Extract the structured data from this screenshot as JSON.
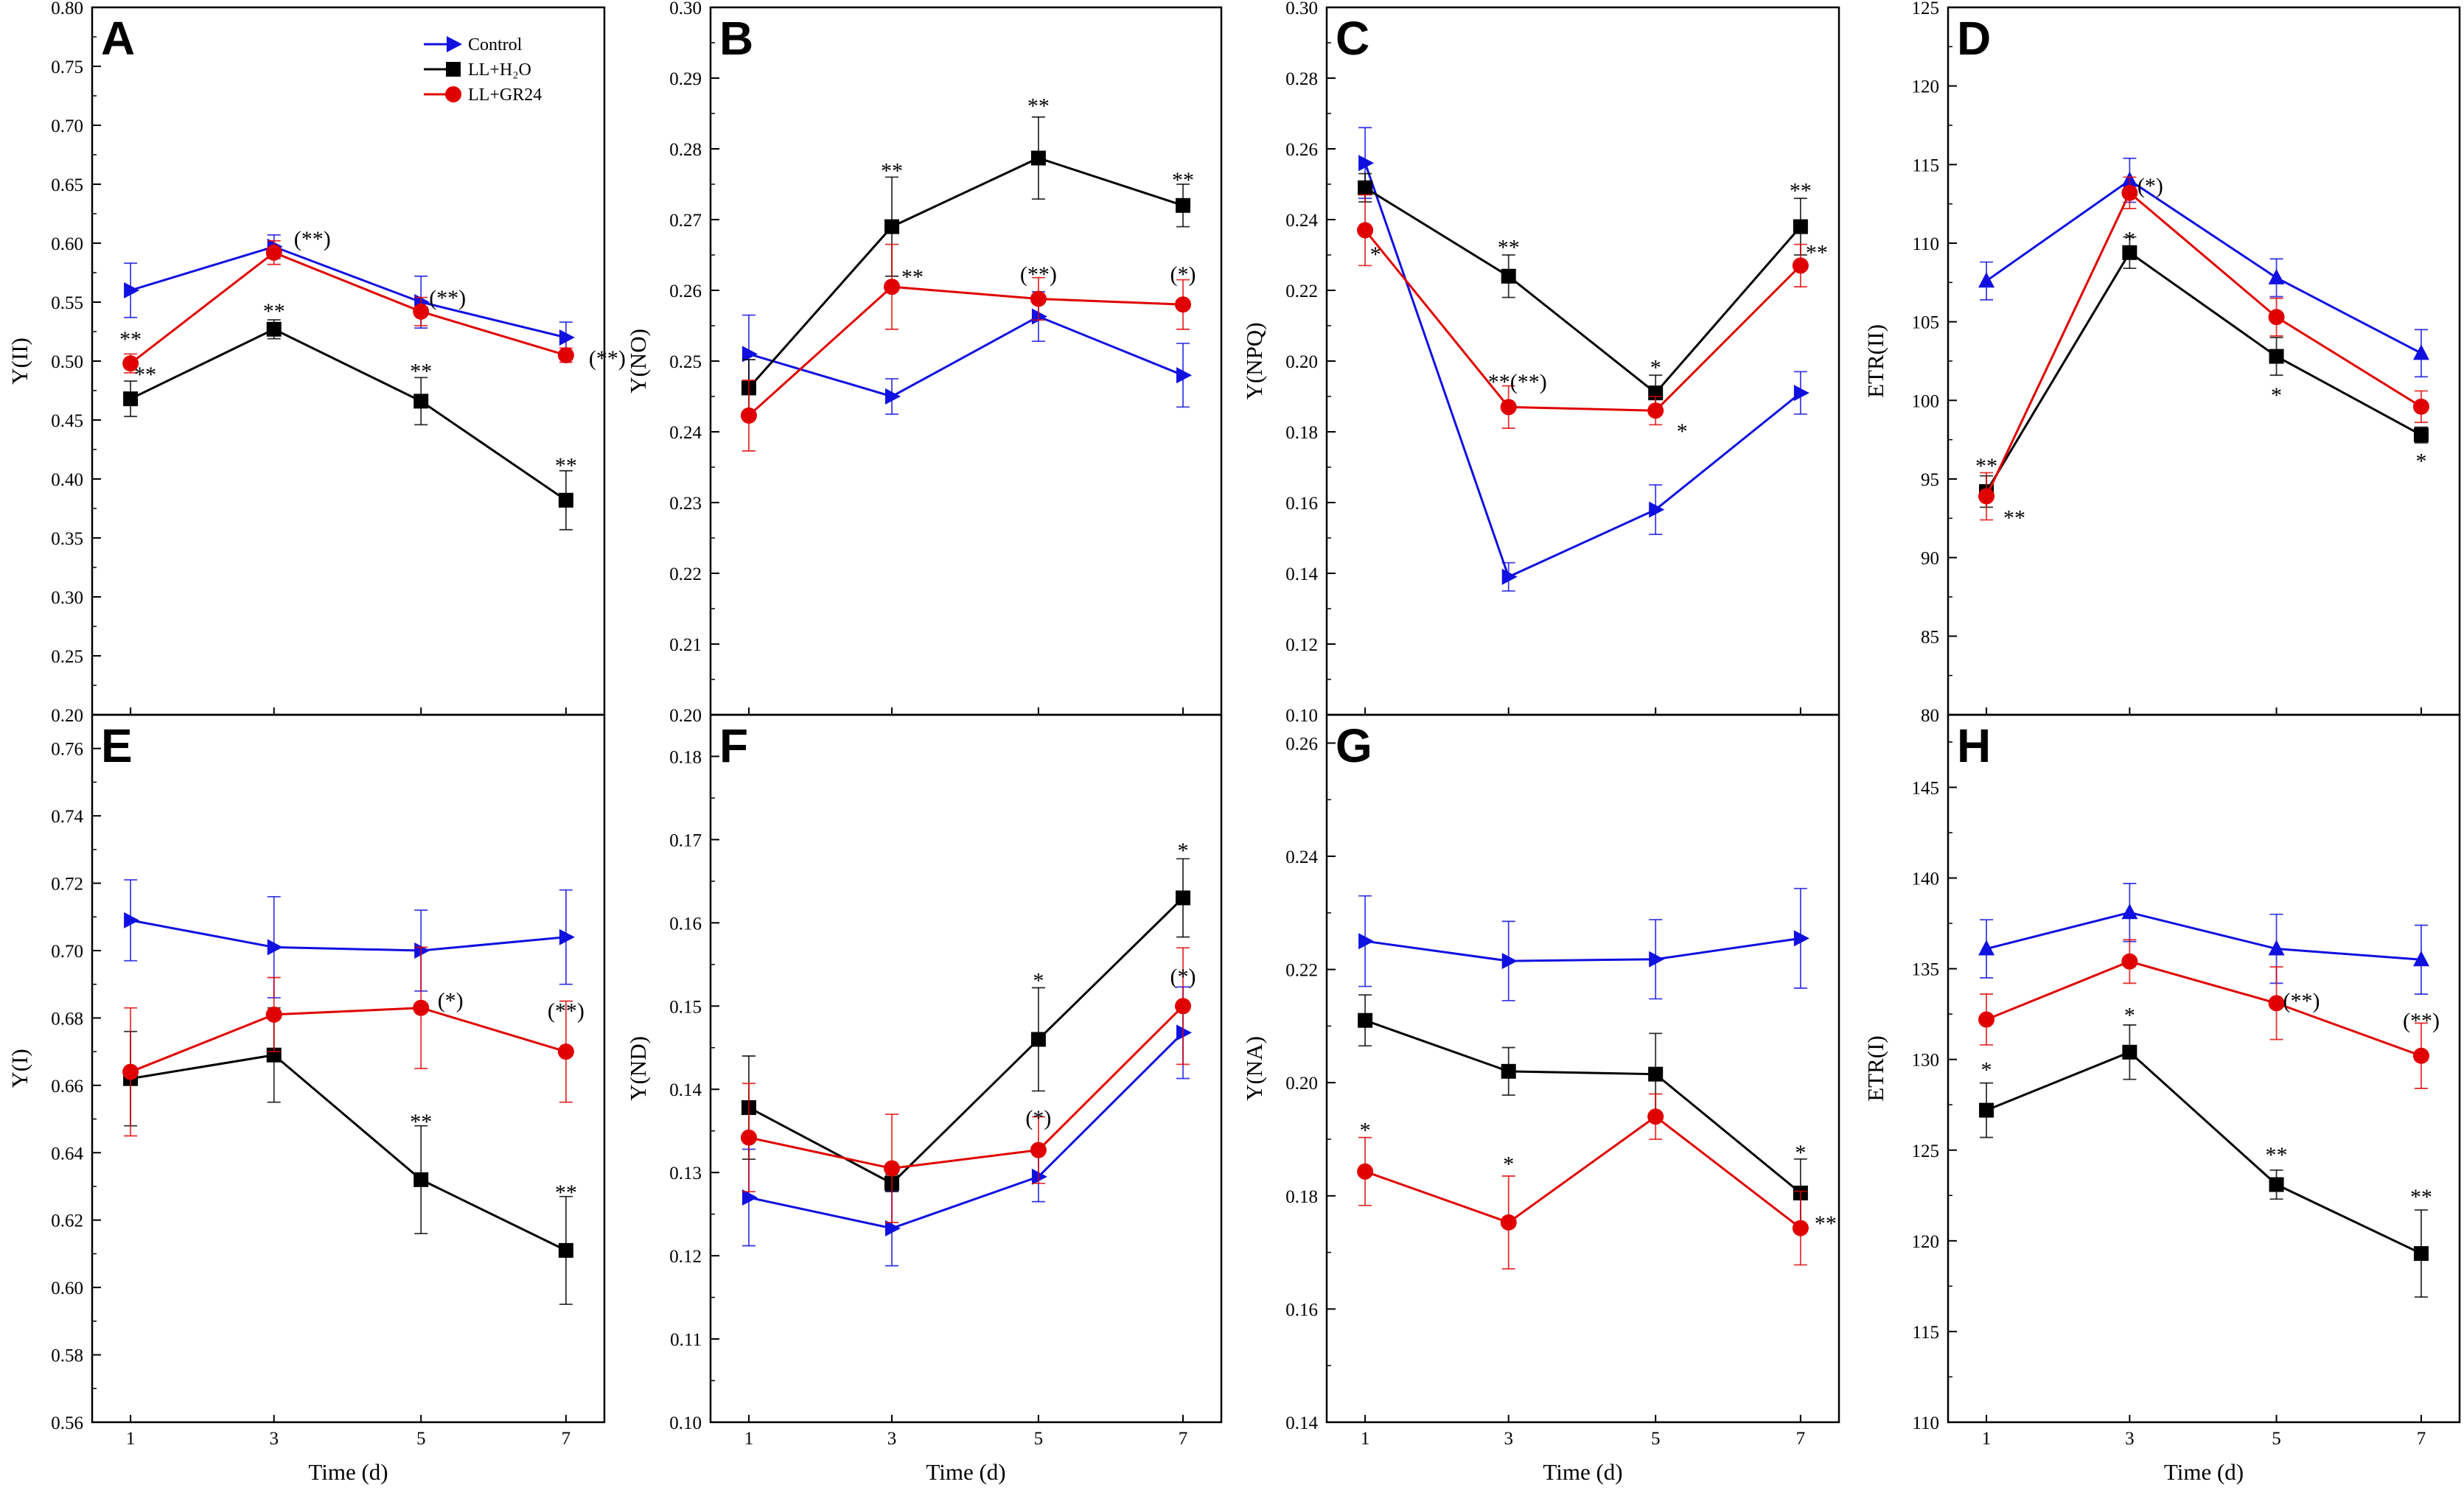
{
  "figure": {
    "legend": [
      {
        "series": "Control",
        "label": "Control"
      },
      {
        "series": "LL+H2O",
        "label": "LL+H₂O"
      },
      {
        "series": "LL+GR24",
        "label": "LL+GR24"
      }
    ],
    "series_styles": {
      "Control": {
        "color": "#1010e0",
        "marker": "triangle-right"
      },
      "LL+H2O": {
        "color": "#000000",
        "marker": "square"
      },
      "LL+GR24": {
        "color": "#e00000",
        "marker": "circle"
      }
    }
  },
  "chart_data": [
    {
      "panel": "A",
      "type": "line",
      "xlabel": "",
      "ylabel": "Y(II)",
      "x": [
        1,
        3,
        5,
        7
      ],
      "ylim": [
        0.2,
        0.8
      ],
      "yticks": [
        "0.20",
        "0.25",
        "0.30",
        "0.35",
        "0.40",
        "0.45",
        "0.50",
        "0.55",
        "0.60",
        "0.65",
        "0.70",
        "0.75",
        "0.80"
      ],
      "xticks": [],
      "control_marker": "triangle-right",
      "series": [
        {
          "name": "Control",
          "values": [
            0.56,
            0.597,
            0.55,
            0.52
          ],
          "err": [
            0.023,
            0.01,
            0.022,
            0.013
          ]
        },
        {
          "name": "LL+H2O",
          "values": [
            0.468,
            0.527,
            0.466,
            0.382
          ],
          "err": [
            0.015,
            0.008,
            0.02,
            0.025
          ]
        },
        {
          "name": "LL+GR24",
          "values": [
            0.498,
            0.592,
            0.542,
            0.505
          ],
          "err": [
            0.008,
            0.01,
            0.012,
            0.006
          ]
        }
      ],
      "annotations": [
        {
          "text": "**",
          "x": 1,
          "y": 0.518,
          "dx": 0
        },
        {
          "text": "**",
          "x": 1,
          "y": 0.488,
          "dx": 20
        },
        {
          "text": "(**)",
          "x": 3,
          "y": 0.603,
          "dx": 52
        },
        {
          "text": "**",
          "x": 3,
          "y": 0.542,
          "dx": 0
        },
        {
          "text": "(**)",
          "x": 5,
          "y": 0.553,
          "dx": 36
        },
        {
          "text": "**",
          "x": 5,
          "y": 0.491,
          "dx": 0
        },
        {
          "text": "(**)",
          "x": 7,
          "y": 0.502,
          "dx": 56
        },
        {
          "text": "**",
          "x": 7,
          "y": 0.411,
          "dx": 0
        }
      ]
    },
    {
      "panel": "B",
      "type": "line",
      "xlabel": "",
      "ylabel": "Y(NO)",
      "x": [
        1,
        3,
        5,
        7
      ],
      "ylim": [
        0.2,
        0.3
      ],
      "yticks": [
        "0.20",
        "0.21",
        "0.22",
        "0.23",
        "0.24",
        "0.25",
        "0.26",
        "0.27",
        "0.28",
        "0.29",
        "0.30"
      ],
      "xticks": [],
      "control_marker": "triangle-right",
      "series": [
        {
          "name": "Control",
          "values": [
            0.251,
            0.245,
            0.2563,
            0.248
          ],
          "err": [
            0.0055,
            0.0025,
            0.0035,
            0.0045
          ]
        },
        {
          "name": "LL+H2O",
          "values": [
            0.2462,
            0.269,
            0.2787,
            0.272
          ],
          "err": [
            0.004,
            0.007,
            0.0058,
            0.003
          ]
        },
        {
          "name": "LL+GR24",
          "values": [
            0.2423,
            0.2605,
            0.2588,
            0.258
          ],
          "err": [
            0.005,
            0.006,
            0.003,
            0.0035
          ]
        }
      ],
      "annotations": [
        {
          "text": "**",
          "x": 3,
          "y": 0.2768,
          "dx": 0
        },
        {
          "text": "**",
          "x": 3,
          "y": 0.2618,
          "dx": 28
        },
        {
          "text": "**",
          "x": 5,
          "y": 0.286,
          "dx": 0
        },
        {
          "text": "(**)",
          "x": 5,
          "y": 0.2622,
          "dx": 0
        },
        {
          "text": "**",
          "x": 7,
          "y": 0.2755,
          "dx": 0
        },
        {
          "text": "(*)",
          "x": 7,
          "y": 0.2622,
          "dx": 0
        }
      ]
    },
    {
      "panel": "C",
      "type": "line",
      "xlabel": "",
      "ylabel": "Y(NPQ)",
      "x": [
        1,
        3,
        5,
        7
      ],
      "ylim": [
        0.1,
        0.3
      ],
      "yticks": [
        "0.10",
        "0.12",
        "0.14",
        "0.16",
        "0.18",
        "0.20",
        "0.22",
        "0.24",
        "0.26",
        "0.28",
        "0.30"
      ],
      "xticks": [],
      "control_marker": "triangle-right",
      "series": [
        {
          "name": "Control",
          "values": [
            0.256,
            0.139,
            0.158,
            0.191
          ],
          "err": [
            0.01,
            0.004,
            0.007,
            0.006
          ]
        },
        {
          "name": "LL+H2O",
          "values": [
            0.249,
            0.224,
            0.191,
            0.238
          ],
          "err": [
            0.004,
            0.006,
            0.005,
            0.008
          ]
        },
        {
          "name": "LL+GR24",
          "values": [
            0.237,
            0.187,
            0.186,
            0.227
          ],
          "err": [
            0.01,
            0.006,
            0.004,
            0.006
          ]
        }
      ],
      "annotations": [
        {
          "text": "*",
          "x": 1,
          "y": 0.23,
          "dx": 14
        },
        {
          "text": "**",
          "x": 3,
          "y": 0.232,
          "dx": 0
        },
        {
          "text": "**(**)",
          "x": 3,
          "y": 0.194,
          "dx": 12
        },
        {
          "text": "*",
          "x": 5,
          "y": 0.198,
          "dx": 0
        },
        {
          "text": "*",
          "x": 5,
          "y": 0.18,
          "dx": 36
        },
        {
          "text": "**",
          "x": 7,
          "y": 0.248,
          "dx": 0
        },
        {
          "text": "**",
          "x": 7,
          "y": 0.2305,
          "dx": 22
        }
      ]
    },
    {
      "panel": "D",
      "type": "line",
      "xlabel": "",
      "ylabel": "ETR(II)",
      "x": [
        1,
        3,
        5,
        7
      ],
      "ylim": [
        80,
        125
      ],
      "yticks": [
        "80",
        "85",
        "90",
        "95",
        "100",
        "105",
        "110",
        "115",
        "120",
        "125"
      ],
      "xticks": [],
      "control_marker": "triangle-up",
      "series": [
        {
          "name": "Control",
          "values": [
            107.6,
            114.0,
            107.8,
            103.0
          ],
          "err": [
            1.2,
            1.4,
            1.2,
            1.5
          ]
        },
        {
          "name": "LL+H2O",
          "values": [
            94.2,
            109.4,
            102.8,
            97.8
          ],
          "err": [
            1.0,
            1.0,
            1.2,
            0.5
          ]
        },
        {
          "name": "LL+GR24",
          "values": [
            93.9,
            113.2,
            105.3,
            99.6
          ],
          "err": [
            1.5,
            1.0,
            1.2,
            1.0
          ]
        }
      ],
      "annotations": [
        {
          "text": "**",
          "x": 1,
          "y": 95.8,
          "dx": 0
        },
        {
          "text": "**",
          "x": 1,
          "y": 92.5,
          "dx": 38
        },
        {
          "text": "(*)",
          "x": 3,
          "y": 113.6,
          "dx": 28
        },
        {
          "text": "*",
          "x": 3,
          "y": 110.2,
          "dx": 0
        },
        {
          "text": "*",
          "x": 5,
          "y": 100.3,
          "dx": 0
        },
        {
          "text": "*",
          "x": 7,
          "y": 96.1,
          "dx": 0
        }
      ]
    },
    {
      "panel": "E",
      "type": "line",
      "xlabel": "Time (d)",
      "ylabel": "Y(I)",
      "x": [
        1,
        3,
        5,
        7
      ],
      "ylim": [
        0.56,
        0.77
      ],
      "yticks": [
        "0.56",
        "0.58",
        "0.60",
        "0.62",
        "0.64",
        "0.66",
        "0.68",
        "0.70",
        "0.72",
        "0.74",
        "0.76"
      ],
      "xticks": [
        "1",
        "3",
        "5",
        "7"
      ],
      "control_marker": "triangle-right",
      "series": [
        {
          "name": "Control",
          "values": [
            0.709,
            0.701,
            0.7,
            0.704
          ],
          "err": [
            0.012,
            0.015,
            0.012,
            0.014
          ]
        },
        {
          "name": "LL+H2O",
          "values": [
            0.662,
            0.669,
            0.632,
            0.611
          ],
          "err": [
            0.014,
            0.014,
            0.016,
            0.016
          ]
        },
        {
          "name": "LL+GR24",
          "values": [
            0.664,
            0.681,
            0.683,
            0.67
          ],
          "err": [
            0.019,
            0.011,
            0.018,
            0.015
          ]
        }
      ],
      "annotations": [
        {
          "text": "(*)",
          "x": 5,
          "y": 0.685,
          "dx": 40
        },
        {
          "text": "**",
          "x": 5,
          "y": 0.649,
          "dx": 0
        },
        {
          "text": "(**)",
          "x": 7,
          "y": 0.682,
          "dx": 0
        },
        {
          "text": "**",
          "x": 7,
          "y": 0.628,
          "dx": 0
        }
      ]
    },
    {
      "panel": "F",
      "type": "line",
      "xlabel": "Time (d)",
      "ylabel": "Y(ND)",
      "x": [
        1,
        3,
        5,
        7
      ],
      "ylim": [
        0.1,
        0.185
      ],
      "yticks": [
        "0.10",
        "0.11",
        "0.12",
        "0.13",
        "0.14",
        "0.15",
        "0.16",
        "0.17",
        "0.18"
      ],
      "xticks": [
        "1",
        "3",
        "5",
        "7"
      ],
      "control_marker": "triangle-right",
      "series": [
        {
          "name": "Control",
          "values": [
            0.127,
            0.1233,
            0.1295,
            0.1468
          ],
          "err": [
            0.0058,
            0.0045,
            0.003,
            0.0055
          ]
        },
        {
          "name": "LL+H2O",
          "values": [
            0.1378,
            0.1287,
            0.146,
            0.163
          ],
          "err": [
            0.0062,
            0.001,
            0.0062,
            0.0047
          ]
        },
        {
          "name": "LL+GR24",
          "values": [
            0.1342,
            0.1305,
            0.1327,
            0.15
          ],
          "err": [
            0.0065,
            0.0065,
            0.004,
            0.007
          ]
        }
      ],
      "annotations": [
        {
          "text": "*",
          "x": 5,
          "y": 0.153,
          "dx": 0
        },
        {
          "text": "(*)",
          "x": 5,
          "y": 0.1365,
          "dx": 0
        },
        {
          "text": "*",
          "x": 7,
          "y": 0.1686,
          "dx": 0
        },
        {
          "text": "(*)",
          "x": 7,
          "y": 0.1535,
          "dx": 0
        }
      ]
    },
    {
      "panel": "G",
      "type": "line",
      "xlabel": "Time (d)",
      "ylabel": "Y(NA)",
      "x": [
        1,
        3,
        5,
        7
      ],
      "ylim": [
        0.14,
        0.265
      ],
      "yticks": [
        "0.14",
        "0.16",
        "0.18",
        "0.20",
        "0.22",
        "0.24",
        "0.26"
      ],
      "xticks": [
        "1",
        "3",
        "5",
        "7"
      ],
      "control_marker": "triangle-right",
      "series": [
        {
          "name": "Control",
          "values": [
            0.225,
            0.2215,
            0.2218,
            0.2255
          ],
          "err": [
            0.008,
            0.007,
            0.007,
            0.0088
          ]
        },
        {
          "name": "LL+H2O",
          "values": [
            0.211,
            0.202,
            0.2015,
            0.1805
          ],
          "err": [
            0.0045,
            0.0042,
            0.0072,
            0.006
          ]
        },
        {
          "name": "LL+GR24",
          "values": [
            0.1843,
            0.1753,
            0.194,
            0.1743
          ],
          "err": [
            0.006,
            0.0082,
            0.004,
            0.0065
          ]
        }
      ],
      "annotations": [
        {
          "text": "*",
          "x": 1,
          "y": 0.1915,
          "dx": 0
        },
        {
          "text": "*",
          "x": 3,
          "y": 0.1855,
          "dx": 0
        },
        {
          "text": "*",
          "x": 7,
          "y": 0.1875,
          "dx": 0
        },
        {
          "text": "**",
          "x": 7,
          "y": 0.175,
          "dx": 34
        }
      ]
    },
    {
      "panel": "H",
      "type": "line",
      "xlabel": "Time (d)",
      "ylabel": "ETR(I)",
      "x": [
        1,
        3,
        5,
        7
      ],
      "ylim": [
        110,
        149
      ],
      "yticks": [
        "110",
        "115",
        "120",
        "125",
        "130",
        "135",
        "140",
        "145"
      ],
      "xticks": [
        "1",
        "3",
        "5",
        "7"
      ],
      "control_marker": "triangle-up",
      "series": [
        {
          "name": "Control",
          "values": [
            136.1,
            138.1,
            136.1,
            135.5
          ],
          "err": [
            1.6,
            1.6,
            1.9,
            1.9
          ]
        },
        {
          "name": "LL+H2O",
          "values": [
            127.2,
            130.4,
            123.1,
            119.3
          ],
          "err": [
            1.5,
            1.5,
            0.8,
            2.4
          ]
        },
        {
          "name": "LL+GR24",
          "values": [
            132.2,
            135.4,
            133.1,
            130.2
          ],
          "err": [
            1.4,
            1.2,
            2.0,
            1.8
          ]
        }
      ],
      "annotations": [
        {
          "text": "*",
          "x": 1,
          "y": 129.4,
          "dx": 0
        },
        {
          "text": "*",
          "x": 3,
          "y": 132.4,
          "dx": 0
        },
        {
          "text": "(**)",
          "x": 5,
          "y": 133.2,
          "dx": 34
        },
        {
          "text": "**",
          "x": 5,
          "y": 124.7,
          "dx": 0
        },
        {
          "text": "(**)",
          "x": 7,
          "y": 132.1,
          "dx": 0
        },
        {
          "text": "**",
          "x": 7,
          "y": 122.4,
          "dx": 0
        }
      ]
    }
  ]
}
